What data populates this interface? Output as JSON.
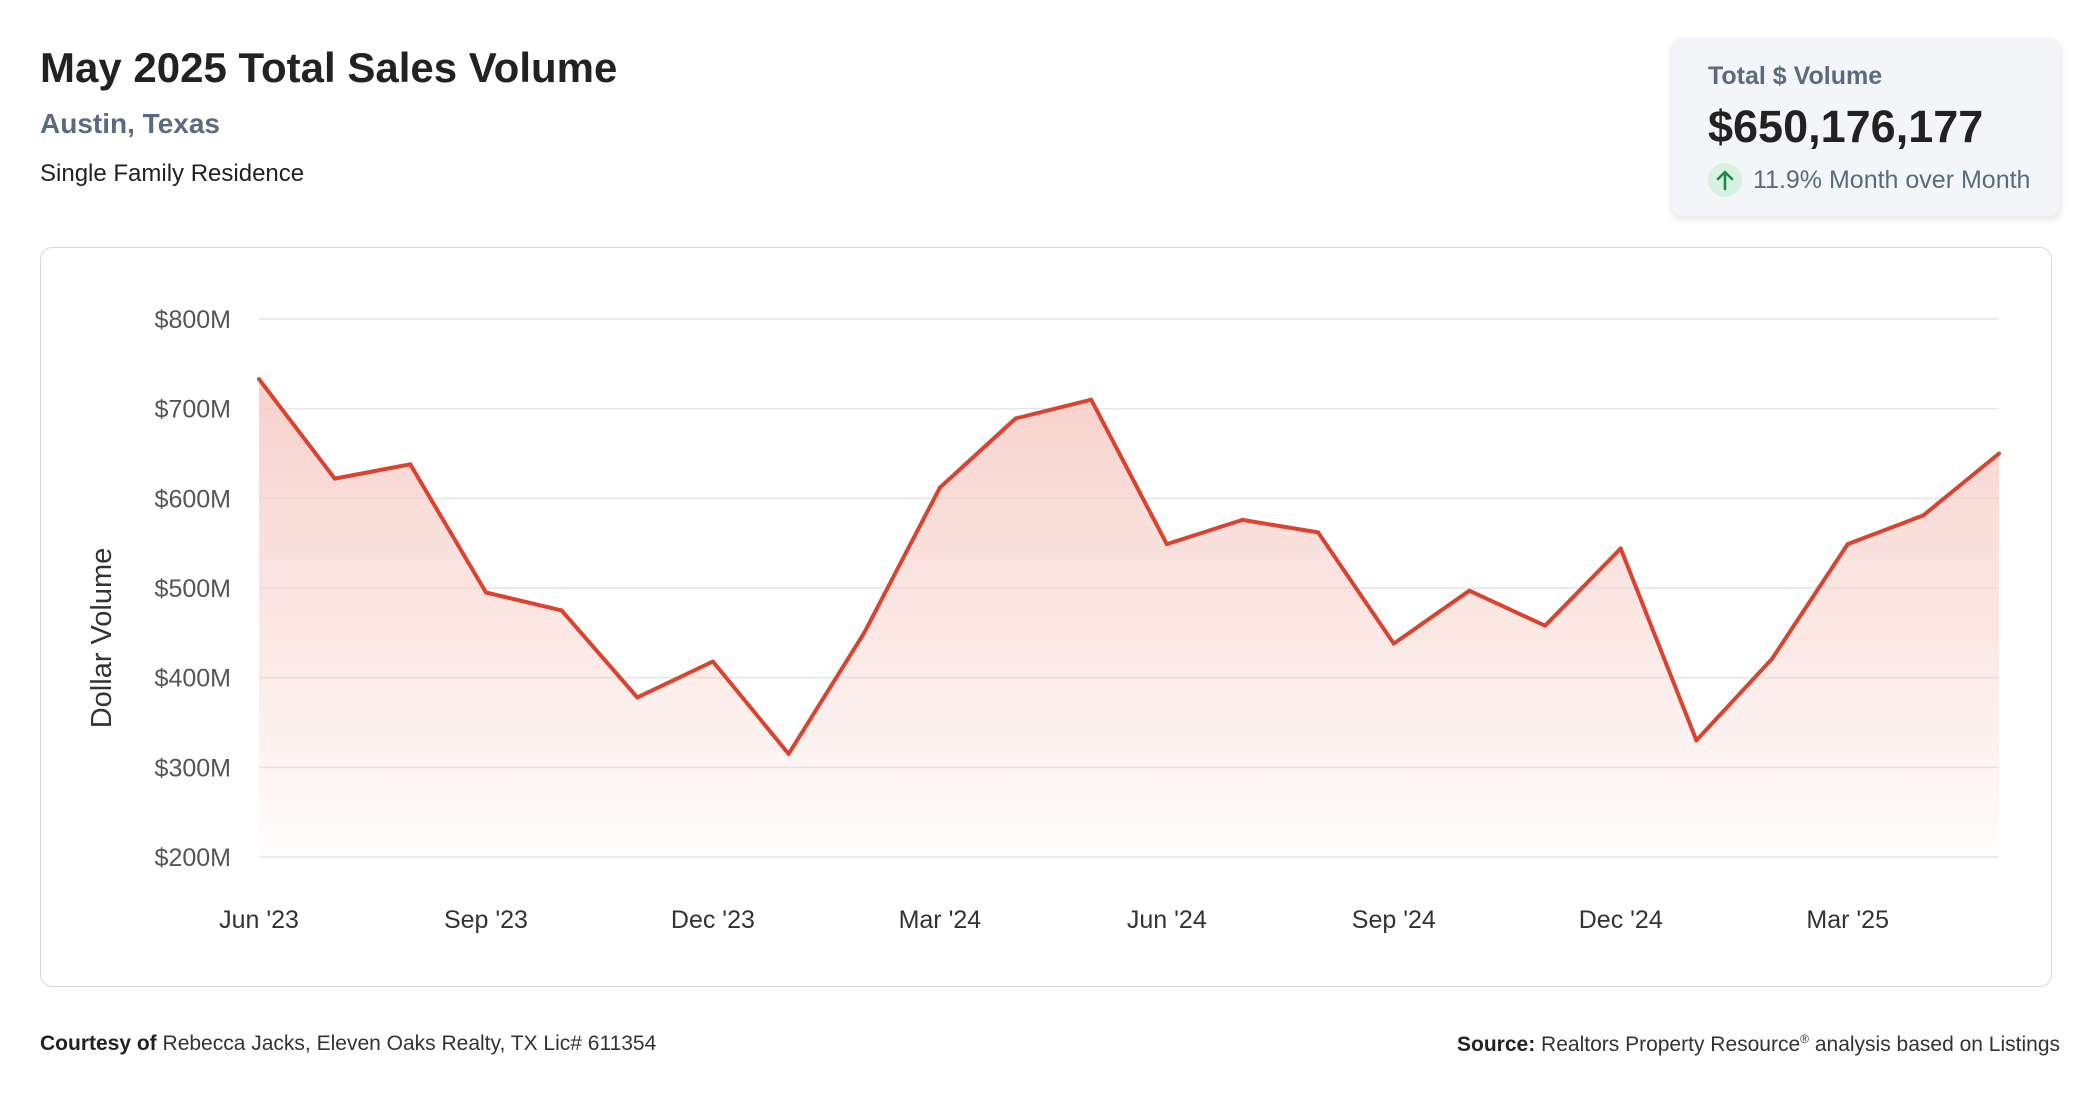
{
  "header": {
    "title": "May 2025 Total Sales Volume",
    "location": "Austin, Texas",
    "property_type": "Single Family Residence"
  },
  "kpi": {
    "label": "Total $ Volume",
    "value": "$650,176,177",
    "change": "11.9% Month over Month",
    "direction_icon": "arrow-up-icon",
    "positive_color": "#1e8a4a"
  },
  "chart_data": {
    "type": "area",
    "ylabel": "Dollar Volume",
    "xlabel": "",
    "unit": "USD millions",
    "ylim": [
      200,
      800
    ],
    "yticks": [
      {
        "value": 200,
        "label": "$200M"
      },
      {
        "value": 300,
        "label": "$300M"
      },
      {
        "value": 400,
        "label": "$400M"
      },
      {
        "value": 500,
        "label": "$500M"
      },
      {
        "value": 600,
        "label": "$600M"
      },
      {
        "value": 700,
        "label": "$700M"
      },
      {
        "value": 800,
        "label": "$800M"
      }
    ],
    "x": [
      "2023-06",
      "2023-07",
      "2023-08",
      "2023-09",
      "2023-10",
      "2023-11",
      "2023-12",
      "2024-01",
      "2024-02",
      "2024-03",
      "2024-04",
      "2024-05",
      "2024-06",
      "2024-07",
      "2024-08",
      "2024-09",
      "2024-10",
      "2024-11",
      "2024-12",
      "2025-01",
      "2025-02",
      "2025-03",
      "2025-04",
      "2025-05"
    ],
    "values": [
      733,
      622,
      638,
      495,
      475,
      378,
      418,
      315,
      450,
      612,
      689,
      710,
      549,
      576,
      562,
      438,
      497,
      458,
      544,
      330,
      421,
      549,
      581,
      650
    ],
    "xticks": [
      {
        "index": 0,
        "label": "Jun '23"
      },
      {
        "index": 3,
        "label": "Sep '23"
      },
      {
        "index": 6,
        "label": "Dec '23"
      },
      {
        "index": 9,
        "label": "Mar '24"
      },
      {
        "index": 12,
        "label": "Jun '24"
      },
      {
        "index": 15,
        "label": "Sep '24"
      },
      {
        "index": 18,
        "label": "Dec '24"
      },
      {
        "index": 21,
        "label": "Mar '25"
      }
    ],
    "line_color": "#d9432f",
    "fill_color": "#f6c9c3",
    "grid": true
  },
  "footer": {
    "courtesy_label": "Courtesy of",
    "courtesy_text": "Rebecca Jacks, Eleven Oaks Realty, TX Lic# 611354",
    "source_label": "Source:",
    "source_name": "Realtors Property Resource",
    "source_mark": "®",
    "source_text": "analysis based on Listings"
  }
}
